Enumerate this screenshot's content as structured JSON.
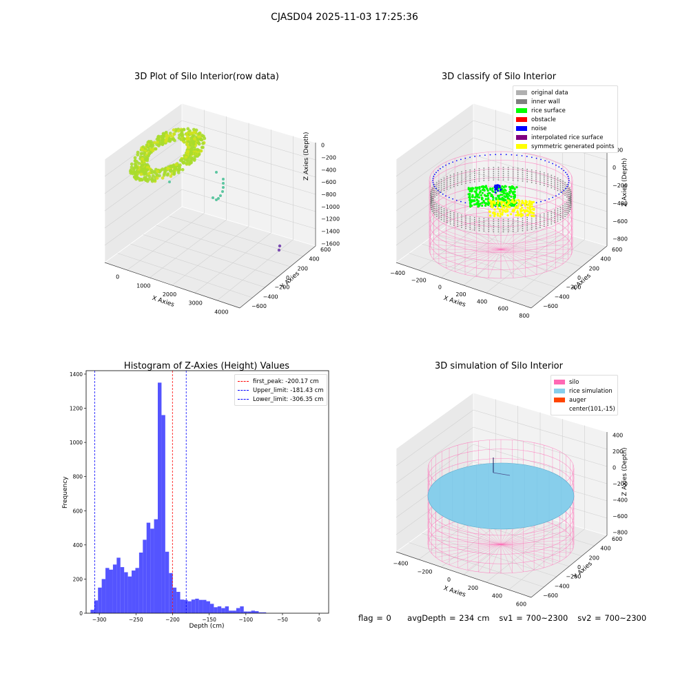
{
  "figure": {
    "suptitle": "CJASD04 2025-11-03 17:25:36",
    "footer": {
      "flag": "flag = 0",
      "avg_depth": "avgDepth = 234 cm",
      "sv1": "sv1 = 700~2300",
      "sv2": "sv2 = 700~2300"
    }
  },
  "panels": {
    "raw": {
      "title": "3D Plot of Silo Interior(row data)",
      "xlabel": "X Axies",
      "ylabel": "Y Axies",
      "zlabel": "Z Axies (Depth)",
      "xticks": [
        "0",
        "1000",
        "2000",
        "3000",
        "4000"
      ],
      "yticks": [
        "600",
        "400",
        "200",
        "0",
        "−200",
        "−400",
        "−600"
      ],
      "zticks": [
        "0",
        "−200",
        "−400",
        "−600",
        "−800",
        "−1000",
        "−1200",
        "−1400",
        "−1600"
      ],
      "colors": {
        "ring": "#a8dc2c",
        "ring_alt": "#d2e21e",
        "sparse": "#5cc6a0",
        "far": "#7b4bb0"
      }
    },
    "classify": {
      "title": "3D classify of Silo Interior",
      "xlabel": "X Axies",
      "ylabel": "Y Axies",
      "zlabel": "Z Axies (Depth)",
      "xticks": [
        "−400",
        "−200",
        "0",
        "200",
        "400",
        "600",
        "800"
      ],
      "yticks": [
        "600",
        "400",
        "200",
        "0",
        "−200",
        "−400",
        "−600"
      ],
      "zticks": [
        "200",
        "0",
        "−200",
        "−400",
        "−600",
        "−800"
      ],
      "legend": [
        {
          "label": "original data",
          "color": "#b0b0b0"
        },
        {
          "label": "inner wall",
          "color": "#808080"
        },
        {
          "label": "rice surface",
          "color": "#00ff00"
        },
        {
          "label": "obstacle",
          "color": "#ff0000"
        },
        {
          "label": "noise",
          "color": "#0000ff"
        },
        {
          "label": "interpolated rice surface",
          "color": "#800080"
        },
        {
          "label": "symmetric generated points",
          "color": "#ffff00"
        }
      ]
    },
    "simulation": {
      "title": "3D simulation of Silo Interior",
      "xlabel": "X Axies",
      "ylabel": "Y Axies",
      "zlabel": "Z Axies (Depth)",
      "xticks": [
        "−400",
        "−200",
        "0",
        "200",
        "400",
        "600"
      ],
      "yticks": [
        "600",
        "400",
        "200",
        "0",
        "−200",
        "−400",
        "−600"
      ],
      "zticks": [
        "400",
        "200",
        "0",
        "−200",
        "−400",
        "−600",
        "−800"
      ],
      "legend": [
        {
          "label": "silo",
          "color": "#ff69b4"
        },
        {
          "label": "rice simulation",
          "color": "#87ceeb"
        },
        {
          "label": "auger",
          "color": "#ff4500"
        },
        {
          "label": "center(101,-15)",
          "color": ""
        }
      ]
    }
  },
  "chart_data": {
    "type": "bar",
    "title": "Histogram of Z-Axies (Height) Values",
    "xlabel": "Depth (cm)",
    "ylabel": "Frequency",
    "xlim": [
      -318,
      13
    ],
    "ylim": [
      0,
      1420
    ],
    "xticks": [
      -300,
      -250,
      -200,
      -150,
      -100,
      -50,
      0
    ],
    "yticks": [
      0,
      200,
      400,
      600,
      800,
      1000,
      1200,
      1400
    ],
    "bar_color": "#4b4bff",
    "bin_start": -312,
    "bin_width": 5.1,
    "values": [
      20,
      75,
      150,
      200,
      265,
      255,
      285,
      325,
      270,
      240,
      215,
      250,
      265,
      355,
      430,
      530,
      495,
      550,
      1350,
      1160,
      360,
      235,
      150,
      125,
      80,
      78,
      70,
      80,
      85,
      78,
      78,
      70,
      55,
      35,
      40,
      30,
      40,
      15,
      15,
      30,
      40,
      10,
      10,
      15,
      12,
      5,
      5,
      0
    ],
    "vlines": [
      {
        "label": "first_peak: -200.17 cm",
        "x": -200.17,
        "color": "#ff0000"
      },
      {
        "label": "Upper_limit: -181.43 cm",
        "x": -181.43,
        "color": "#0000ff"
      },
      {
        "label": "Lower_limit: -306.35 cm",
        "x": -306.35,
        "color": "#0000ff"
      }
    ],
    "legend_position": "upper right"
  }
}
